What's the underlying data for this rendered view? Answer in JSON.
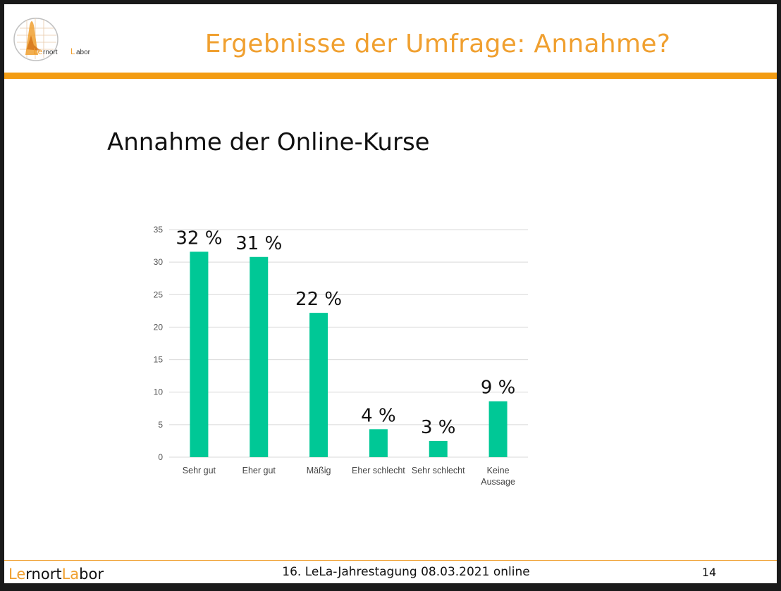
{
  "header": {
    "title": "Ergebnisse der Umfrage: Annahme?"
  },
  "logo": {
    "part1": "Le",
    "part2": "rnort ",
    "part3": "L",
    "part4": "abor"
  },
  "heading": "Annahme der Online-Kurse",
  "chart_data": {
    "type": "bar",
    "categories": [
      "Sehr gut",
      "Eher gut",
      "Mäßig",
      "Eher schlecht",
      "Sehr schlecht",
      "Keine Aussage"
    ],
    "values": [
      31.6,
      30.8,
      22.2,
      4.3,
      2.5,
      8.6
    ],
    "data_labels": [
      "32 %",
      "31 %",
      "22 %",
      "4 %",
      "3 %",
      "9 %"
    ],
    "ylim": [
      0,
      35
    ],
    "yticks": [
      0,
      5,
      10,
      15,
      20,
      25,
      30,
      35
    ],
    "grid": true,
    "bar_color": "#00c896",
    "grid_color": "#d9d9d9"
  },
  "footer": {
    "brand_a": "Le",
    "brand_b": "rnort",
    "brand_c": "La",
    "brand_d": "bor",
    "event": "16. LeLa-Jahrestagung 08.03.2021 online",
    "page": "14"
  },
  "colors": {
    "accent": "#f39c12",
    "title": "#f0a030"
  }
}
